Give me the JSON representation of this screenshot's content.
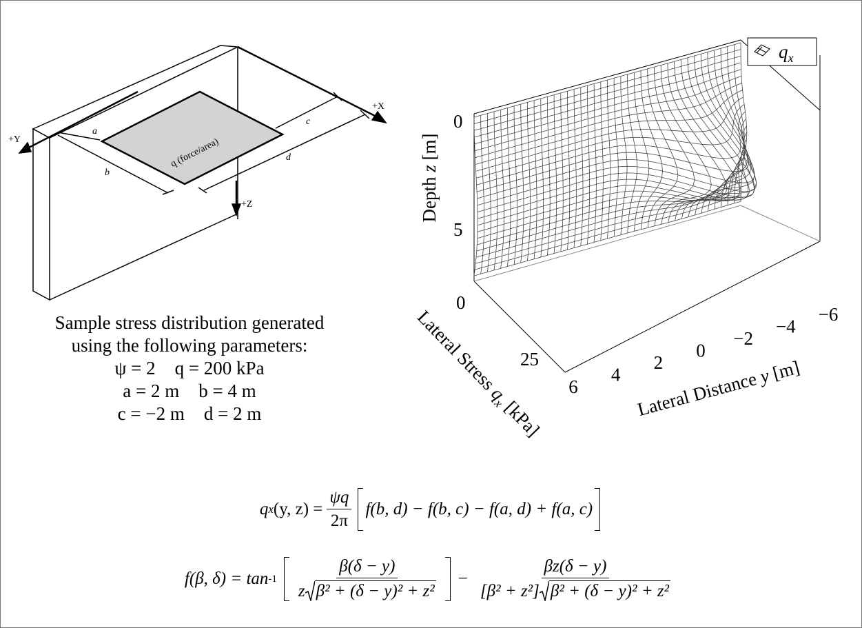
{
  "diagram": {
    "axis_x": "+X",
    "axis_y": "+Y",
    "axis_z": "+Z",
    "dim_a": "a",
    "dim_b": "b",
    "dim_c": "c",
    "dim_d": "d",
    "load": "q (force/area)"
  },
  "caption": {
    "lines": [
      "Sample stress distribution generated",
      "using the following parameters:"
    ],
    "params": [
      [
        "ψ = 2",
        "q = 200 kPa"
      ],
      [
        "a = 2 m",
        "b = 4 m"
      ],
      [
        "c = −2 m",
        "d = 2 m"
      ]
    ]
  },
  "plot": {
    "legend": "q",
    "legend_sub": "x",
    "depth_label": [
      "Depth ",
      "z",
      " [m]"
    ],
    "depth_ticks": [
      "0",
      "5"
    ],
    "stress_label": [
      "Lateral Stress ",
      "q",
      "x",
      " [kPa]"
    ],
    "stress_ticks": [
      "0",
      "25"
    ],
    "lateral_label": [
      "Lateral Distance ",
      "y",
      " [m]"
    ],
    "lateral_ticks": [
      "6",
      "4",
      "2",
      "0",
      "−2",
      "−4",
      "−6"
    ]
  },
  "equations": {
    "eq1": {
      "lhs": "q",
      "lhs_sub": "x",
      "lhs_rest": "(y, z) =",
      "num": "ψq",
      "den": "2π",
      "bracket": "f(b, d) − f(b, c) − f(a, d) + f(a, c)"
    },
    "eq2": {
      "lhs": "f(β, δ) = tan",
      "sup": "-1",
      "num1": "β(δ − y)",
      "den1_pre": "z",
      "den1_root": "β² + (δ − y)² + z²",
      "op": "−",
      "num2": "βz(δ − y)",
      "den2_pre": "[β² + z²]",
      "den2_root": "β² + (δ − y)² + z²"
    }
  }
}
